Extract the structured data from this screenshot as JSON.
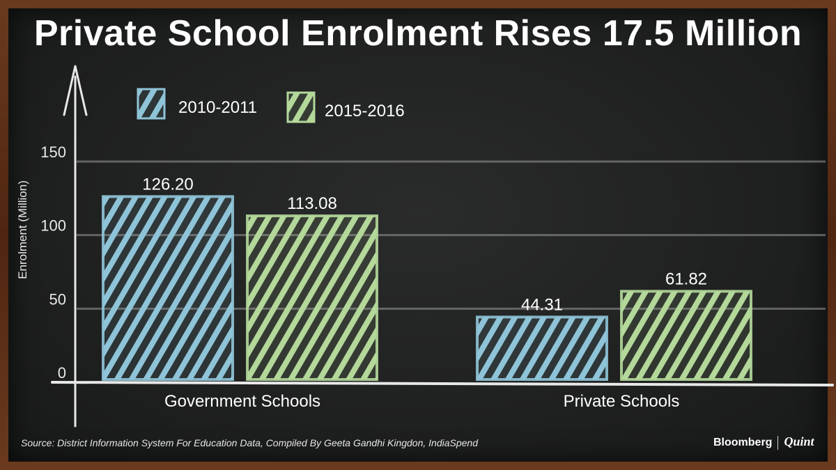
{
  "title": "Private School Enrolment Rises 17.5 Million",
  "source": "Source: District Information System For Education Data, Compiled By Geeta Gandhi Kingdon, IndiaSpend",
  "brand": {
    "name": "Bloomberg",
    "partner": "Quint"
  },
  "colors": {
    "series_2010": "#8fc4d8",
    "series_2015": "#b3d89a",
    "chalk": "#e8e8e8"
  },
  "chart_data": {
    "type": "bar",
    "categories": [
      "Government Schools",
      "Private Schools"
    ],
    "series": [
      {
        "name": "2010-2011",
        "values": [
          126.2,
          44.31
        ],
        "labels": [
          "126.20",
          "44.31"
        ]
      },
      {
        "name": "2015-2016",
        "values": [
          113.08,
          61.82
        ],
        "labels": [
          "113.08",
          "61.82"
        ]
      }
    ],
    "ylabel": "Enrolment (Million)",
    "xlabel": "",
    "ylim": [
      0,
      150
    ],
    "yticks": [
      0,
      50,
      100,
      150
    ],
    "grid": true,
    "legend": "top-left"
  }
}
